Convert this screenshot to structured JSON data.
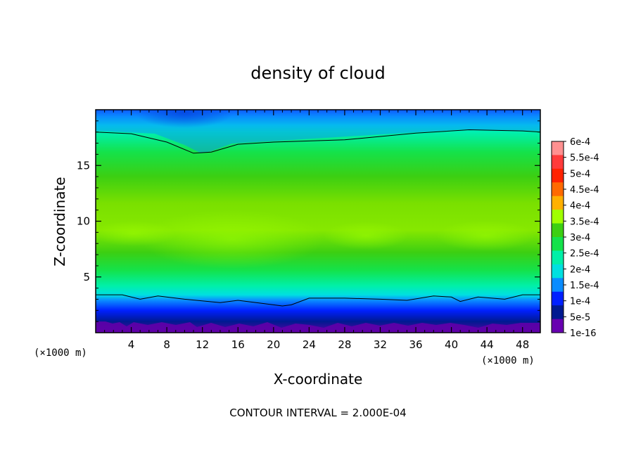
{
  "chart_data": {
    "type": "heatmap",
    "title": "density of cloud",
    "xlabel": "X-coordinate",
    "ylabel": "Z-coordinate",
    "x_unit": "(×1000 m)",
    "x_unit_right": "(×1000 m)",
    "xlim": [
      0,
      50
    ],
    "ylim": [
      0,
      20
    ],
    "x_ticks": [
      4,
      8,
      12,
      16,
      20,
      24,
      28,
      32,
      36,
      40,
      44,
      48
    ],
    "y_ticks": [
      5,
      10,
      15
    ],
    "note": "CONTOUR INTERVAL = 2.000E-04",
    "colorbar": {
      "labels": [
        "6e-4",
        "5.5e-4",
        "5e-4",
        "4.5e-4",
        "4e-4",
        "3.5e-4",
        "3e-4",
        "2.5e-4",
        "2e-4",
        "1.5e-4",
        "1e-4",
        "5e-5",
        "1e-16"
      ],
      "colors": [
        "#ff9090",
        "#ff3b3b",
        "#ff2200",
        "#ff6a00",
        "#ffb000",
        "#a0ff00",
        "#3ccf12",
        "#14e24a",
        "#00f0a8",
        "#00e0e0",
        "#0a8cff",
        "#0020ff",
        "#001a90",
        "#6800b0"
      ]
    },
    "contour_lines": [
      {
        "level": "2e-4 (upper)",
        "points": [
          [
            0,
            18.0
          ],
          [
            4,
            17.85
          ],
          [
            8,
            17.1
          ],
          [
            11,
            16.1
          ],
          [
            13,
            16.2
          ],
          [
            16,
            16.9
          ],
          [
            20,
            17.1
          ],
          [
            28,
            17.3
          ],
          [
            36,
            17.9
          ],
          [
            42,
            18.2
          ],
          [
            48,
            18.1
          ],
          [
            50,
            18.0
          ]
        ]
      },
      {
        "level": "2e-4 (lower)",
        "points": [
          [
            0,
            3.4
          ],
          [
            3,
            3.4
          ],
          [
            5,
            3.0
          ],
          [
            7,
            3.3
          ],
          [
            10,
            3.0
          ],
          [
            14,
            2.7
          ],
          [
            16,
            2.9
          ],
          [
            19,
            2.6
          ],
          [
            21,
            2.4
          ],
          [
            22,
            2.5
          ],
          [
            24,
            3.1
          ],
          [
            28,
            3.1
          ],
          [
            32,
            3.0
          ],
          [
            35,
            2.9
          ],
          [
            38,
            3.3
          ],
          [
            40,
            3.2
          ],
          [
            41,
            2.8
          ],
          [
            43,
            3.2
          ],
          [
            46,
            3.0
          ],
          [
            48,
            3.4
          ],
          [
            50,
            3.4
          ]
        ]
      }
    ]
  }
}
